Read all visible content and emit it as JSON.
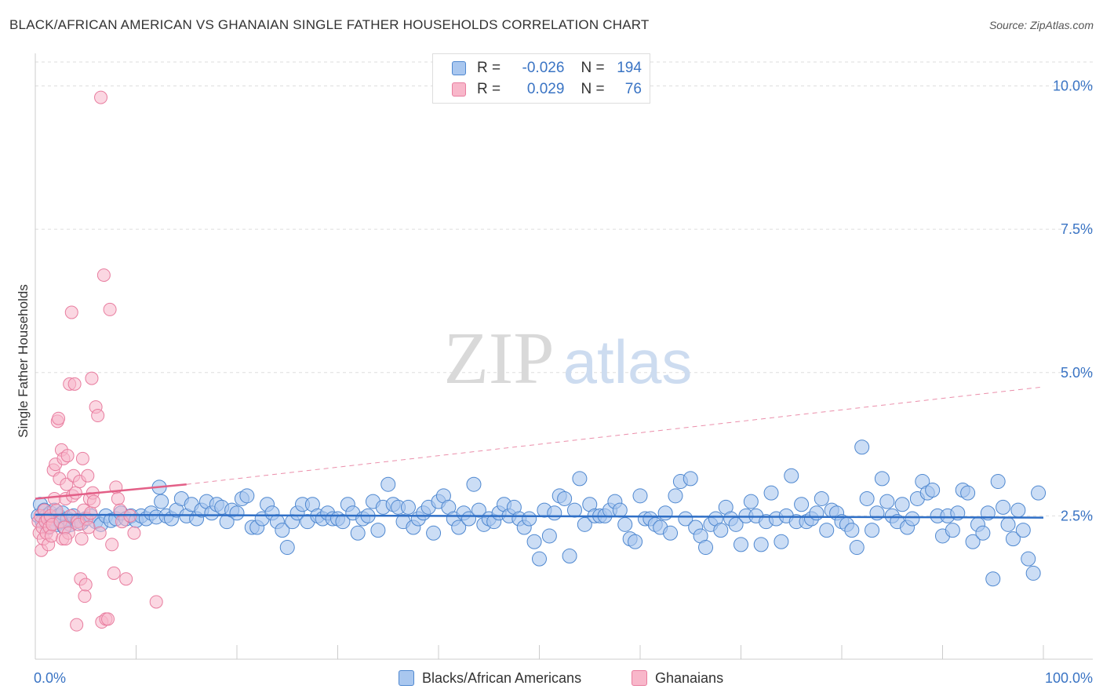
{
  "title": "BLACK/AFRICAN AMERICAN VS GHANAIAN SINGLE FATHER HOUSEHOLDS CORRELATION CHART",
  "source": "Source: ZipAtlas.com",
  "watermark": {
    "zip": "ZIP",
    "atlas": "atlas"
  },
  "legend": {
    "rows": [
      {
        "r_label": "R =",
        "r_value": "-0.026",
        "n_label": "N =",
        "n_value": "194"
      },
      {
        "r_label": "R =",
        "r_value": "0.029",
        "n_label": "N =",
        "n_value": "76"
      }
    ]
  },
  "bottom_legend": [
    {
      "label": "Blacks/African Americans"
    },
    {
      "label": "Ghanaians"
    }
  ],
  "colors": {
    "blue_fill": "#a9c7ef",
    "blue_stroke": "#4f88d0",
    "blue_line": "#2f6fc6",
    "pink_fill": "#f8b7ca",
    "pink_stroke": "#e87d9f",
    "pink_line": "#e35f87",
    "grid": "#dddddd",
    "axis_text": "#3a74c4"
  },
  "chart_data": {
    "type": "scatter",
    "title": "BLACK/AFRICAN AMERICAN VS GHANAIAN SINGLE FATHER HOUSEHOLDS CORRELATION CHART",
    "xlabel": "",
    "ylabel": "Single Father Households",
    "xlim": [
      0,
      100
    ],
    "ylim": [
      0,
      10.5
    ],
    "x_tick_labels": [
      "0.0%",
      "100.0%"
    ],
    "y_ticks": [
      2.5,
      5.0,
      7.5,
      10.0
    ],
    "y_tick_labels": [
      "2.5%",
      "5.0%",
      "7.5%",
      "10.0%"
    ],
    "grid": true,
    "series": [
      {
        "name": "Blacks/African Americans",
        "R": -0.026,
        "N": 194,
        "trend": {
          "x": [
            0,
            100
          ],
          "y": [
            2.52,
            2.47
          ]
        },
        "points": [
          [
            0.3,
            2.5
          ],
          [
            0.5,
            2.7
          ],
          [
            0.7,
            2.4
          ],
          [
            0.9,
            2.6
          ],
          [
            1.1,
            2.5
          ],
          [
            1.3,
            2.3
          ],
          [
            1.5,
            2.55
          ],
          [
            1.7,
            2.45
          ],
          [
            1.9,
            2.6
          ],
          [
            2.1,
            2.35
          ],
          [
            2.3,
            2.5
          ],
          [
            2.5,
            2.4
          ],
          [
            2.7,
            2.55
          ],
          [
            2.9,
            2.3
          ],
          [
            3.2,
            2.45
          ],
          [
            3.5,
            2.35
          ],
          [
            3.8,
            2.5
          ],
          [
            4.2,
            2.42
          ],
          [
            4.6,
            2.38
          ],
          [
            5.0,
            2.45
          ],
          [
            5.5,
            2.5
          ],
          [
            6.0,
            2.4
          ],
          [
            6.5,
            2.35
          ],
          [
            7.0,
            2.5
          ],
          [
            7.5,
            2.42
          ],
          [
            8.0,
            2.45
          ],
          [
            8.5,
            2.55
          ],
          [
            9.0,
            2.45
          ],
          [
            9.5,
            2.5
          ],
          [
            10.0,
            2.42
          ],
          [
            10.5,
            2.5
          ],
          [
            11.0,
            2.45
          ],
          [
            11.5,
            2.55
          ],
          [
            12.0,
            2.48
          ],
          [
            12.5,
            2.75
          ],
          [
            12.3,
            3.0
          ],
          [
            13.0,
            2.5
          ],
          [
            13.5,
            2.45
          ],
          [
            14.0,
            2.6
          ],
          [
            14.5,
            2.8
          ],
          [
            15.0,
            2.5
          ],
          [
            15.5,
            2.7
          ],
          [
            16.0,
            2.45
          ],
          [
            16.5,
            2.6
          ],
          [
            17.0,
            2.75
          ],
          [
            17.5,
            2.55
          ],
          [
            18.0,
            2.7
          ],
          [
            18.5,
            2.65
          ],
          [
            19.0,
            2.4
          ],
          [
            19.5,
            2.6
          ],
          [
            20.0,
            2.55
          ],
          [
            20.5,
            2.8
          ],
          [
            21.0,
            2.85
          ],
          [
            21.5,
            2.3
          ],
          [
            22.0,
            2.3
          ],
          [
            22.5,
            2.45
          ],
          [
            23.0,
            2.7
          ],
          [
            23.5,
            2.55
          ],
          [
            24.0,
            2.4
          ],
          [
            24.5,
            2.25
          ],
          [
            25.0,
            1.95
          ],
          [
            25.5,
            2.4
          ],
          [
            26.0,
            2.55
          ],
          [
            26.5,
            2.7
          ],
          [
            27.0,
            2.4
          ],
          [
            27.5,
            2.7
          ],
          [
            28.0,
            2.5
          ],
          [
            28.5,
            2.45
          ],
          [
            29.0,
            2.55
          ],
          [
            29.5,
            2.45
          ],
          [
            30.0,
            2.45
          ],
          [
            30.5,
            2.4
          ],
          [
            31.0,
            2.7
          ],
          [
            31.5,
            2.55
          ],
          [
            32.0,
            2.2
          ],
          [
            32.5,
            2.45
          ],
          [
            33.0,
            2.5
          ],
          [
            33.5,
            2.75
          ],
          [
            34.0,
            2.25
          ],
          [
            34.5,
            2.65
          ],
          [
            35.0,
            3.05
          ],
          [
            35.5,
            2.7
          ],
          [
            36.0,
            2.65
          ],
          [
            36.5,
            2.4
          ],
          [
            37.0,
            2.65
          ],
          [
            37.5,
            2.3
          ],
          [
            38.0,
            2.45
          ],
          [
            38.5,
            2.55
          ],
          [
            39.0,
            2.65
          ],
          [
            39.5,
            2.2
          ],
          [
            40.0,
            2.75
          ],
          [
            40.5,
            2.85
          ],
          [
            41.0,
            2.65
          ],
          [
            41.5,
            2.45
          ],
          [
            42.0,
            2.3
          ],
          [
            42.5,
            2.55
          ],
          [
            43.0,
            2.45
          ],
          [
            43.5,
            3.05
          ],
          [
            44.0,
            2.6
          ],
          [
            44.5,
            2.35
          ],
          [
            45.0,
            2.45
          ],
          [
            45.5,
            2.4
          ],
          [
            46.0,
            2.55
          ],
          [
            46.5,
            2.7
          ],
          [
            47.0,
            2.5
          ],
          [
            47.5,
            2.65
          ],
          [
            48.0,
            2.45
          ],
          [
            48.5,
            2.3
          ],
          [
            49.0,
            2.45
          ],
          [
            49.5,
            2.05
          ],
          [
            50.0,
            1.75
          ],
          [
            50.5,
            2.6
          ],
          [
            51.0,
            2.15
          ],
          [
            51.5,
            2.55
          ],
          [
            52.0,
            2.85
          ],
          [
            52.5,
            2.8
          ],
          [
            53.0,
            1.8
          ],
          [
            53.5,
            2.6
          ],
          [
            54.0,
            3.15
          ],
          [
            54.5,
            2.35
          ],
          [
            55.0,
            2.7
          ],
          [
            55.5,
            2.5
          ],
          [
            56.0,
            2.5
          ],
          [
            56.5,
            2.5
          ],
          [
            57.0,
            2.6
          ],
          [
            57.5,
            2.75
          ],
          [
            58.0,
            2.6
          ],
          [
            58.5,
            2.35
          ],
          [
            59.0,
            2.1
          ],
          [
            59.5,
            2.05
          ],
          [
            60.0,
            2.85
          ],
          [
            60.5,
            2.45
          ],
          [
            61.0,
            2.45
          ],
          [
            61.5,
            2.35
          ],
          [
            62.0,
            2.3
          ],
          [
            62.5,
            2.55
          ],
          [
            63.0,
            2.2
          ],
          [
            63.5,
            2.85
          ],
          [
            64.0,
            3.1
          ],
          [
            64.5,
            2.45
          ],
          [
            65.0,
            3.15
          ],
          [
            65.5,
            2.3
          ],
          [
            66.0,
            2.15
          ],
          [
            66.5,
            1.95
          ],
          [
            67.0,
            2.35
          ],
          [
            67.5,
            2.45
          ],
          [
            68.0,
            2.25
          ],
          [
            68.5,
            2.65
          ],
          [
            69.0,
            2.45
          ],
          [
            69.5,
            2.35
          ],
          [
            70.0,
            2.0
          ],
          [
            70.5,
            2.5
          ],
          [
            71.0,
            2.75
          ],
          [
            71.5,
            2.5
          ],
          [
            72.0,
            2.0
          ],
          [
            72.5,
            2.4
          ],
          [
            73.0,
            2.9
          ],
          [
            73.5,
            2.45
          ],
          [
            74.0,
            2.05
          ],
          [
            74.5,
            2.5
          ],
          [
            75.0,
            3.2
          ],
          [
            75.5,
            2.4
          ],
          [
            76.0,
            2.7
          ],
          [
            76.5,
            2.4
          ],
          [
            77.0,
            2.45
          ],
          [
            77.5,
            2.55
          ],
          [
            78.0,
            2.8
          ],
          [
            78.5,
            2.25
          ],
          [
            79.0,
            2.6
          ],
          [
            79.5,
            2.55
          ],
          [
            80.0,
            2.4
          ],
          [
            80.5,
            2.35
          ],
          [
            81.0,
            2.25
          ],
          [
            81.5,
            1.95
          ],
          [
            82.0,
            3.7
          ],
          [
            82.5,
            2.8
          ],
          [
            83.0,
            2.25
          ],
          [
            83.5,
            2.55
          ],
          [
            84.0,
            3.15
          ],
          [
            84.5,
            2.75
          ],
          [
            85.0,
            2.5
          ],
          [
            85.5,
            2.4
          ],
          [
            86.0,
            2.7
          ],
          [
            86.5,
            2.3
          ],
          [
            87.0,
            2.45
          ],
          [
            87.5,
            2.8
          ],
          [
            88.0,
            3.1
          ],
          [
            88.5,
            2.9
          ],
          [
            89.0,
            2.95
          ],
          [
            89.5,
            2.5
          ],
          [
            90.0,
            2.15
          ],
          [
            90.5,
            2.5
          ],
          [
            91.0,
            2.25
          ],
          [
            91.5,
            2.55
          ],
          [
            92.0,
            2.95
          ],
          [
            92.5,
            2.9
          ],
          [
            93.0,
            2.05
          ],
          [
            93.5,
            2.35
          ],
          [
            94.0,
            2.2
          ],
          [
            94.5,
            2.55
          ],
          [
            95.0,
            1.4
          ],
          [
            95.5,
            3.1
          ],
          [
            96.0,
            2.65
          ],
          [
            96.5,
            2.35
          ],
          [
            97.0,
            2.1
          ],
          [
            97.5,
            2.6
          ],
          [
            98.0,
            2.25
          ],
          [
            98.5,
            1.75
          ],
          [
            99.0,
            1.5
          ],
          [
            99.5,
            2.9
          ]
        ]
      },
      {
        "name": "Ghanaians",
        "R": 0.029,
        "N": 76,
        "trend": {
          "x": [
            0,
            15
          ],
          "y": [
            2.8,
            3.05
          ]
        },
        "trend_extension": {
          "x": [
            15,
            100
          ],
          "y": [
            3.05,
            4.75
          ]
        },
        "points": [
          [
            0.3,
            2.4
          ],
          [
            0.4,
            2.2
          ],
          [
            0.5,
            2.5
          ],
          [
            0.6,
            1.9
          ],
          [
            0.7,
            2.3
          ],
          [
            0.8,
            2.1
          ],
          [
            0.9,
            2.6
          ],
          [
            1.0,
            2.4
          ],
          [
            1.1,
            2.2
          ],
          [
            1.2,
            2.45
          ],
          [
            1.3,
            2.0
          ],
          [
            1.4,
            2.3
          ],
          [
            1.5,
            2.5
          ],
          [
            1.6,
            2.15
          ],
          [
            1.7,
            2.35
          ],
          [
            1.8,
            3.3
          ],
          [
            1.9,
            2.8
          ],
          [
            2.0,
            3.4
          ],
          [
            2.1,
            2.6
          ],
          [
            2.2,
            4.15
          ],
          [
            2.3,
            4.2
          ],
          [
            2.4,
            3.15
          ],
          [
            2.5,
            2.4
          ],
          [
            2.6,
            3.65
          ],
          [
            2.7,
            2.1
          ],
          [
            2.8,
            3.5
          ],
          [
            2.9,
            2.3
          ],
          [
            3.0,
            2.8
          ],
          [
            3.1,
            3.05
          ],
          [
            3.2,
            3.55
          ],
          [
            3.3,
            2.2
          ],
          [
            3.4,
            4.8
          ],
          [
            3.5,
            2.5
          ],
          [
            3.6,
            6.05
          ],
          [
            3.7,
            2.85
          ],
          [
            3.8,
            3.2
          ],
          [
            3.9,
            4.8
          ],
          [
            4.0,
            2.9
          ],
          [
            4.1,
            0.6
          ],
          [
            4.2,
            2.4
          ],
          [
            4.3,
            2.35
          ],
          [
            4.4,
            3.1
          ],
          [
            4.5,
            1.4
          ],
          [
            4.6,
            2.1
          ],
          [
            4.7,
            3.5
          ],
          [
            4.8,
            2.6
          ],
          [
            4.9,
            1.1
          ],
          [
            5.0,
            1.3
          ],
          [
            5.1,
            2.45
          ],
          [
            5.2,
            3.2
          ],
          [
            5.3,
            2.3
          ],
          [
            5.4,
            2.8
          ],
          [
            5.5,
            2.55
          ],
          [
            5.6,
            4.9
          ],
          [
            5.7,
            2.9
          ],
          [
            5.8,
            2.75
          ],
          [
            6.0,
            4.4
          ],
          [
            6.2,
            4.25
          ],
          [
            6.4,
            2.2
          ],
          [
            6.6,
            0.65
          ],
          [
            6.8,
            6.7
          ],
          [
            7.0,
            0.7
          ],
          [
            7.2,
            0.7
          ],
          [
            7.4,
            6.1
          ],
          [
            7.6,
            2.0
          ],
          [
            7.8,
            1.5
          ],
          [
            8.0,
            3.0
          ],
          [
            8.2,
            2.8
          ],
          [
            8.4,
            2.6
          ],
          [
            8.6,
            2.4
          ],
          [
            9.0,
            1.4
          ],
          [
            9.4,
            2.5
          ],
          [
            9.8,
            2.2
          ],
          [
            12.0,
            1.0
          ],
          [
            6.5,
            9.8
          ],
          [
            3.0,
            2.1
          ]
        ]
      }
    ]
  }
}
